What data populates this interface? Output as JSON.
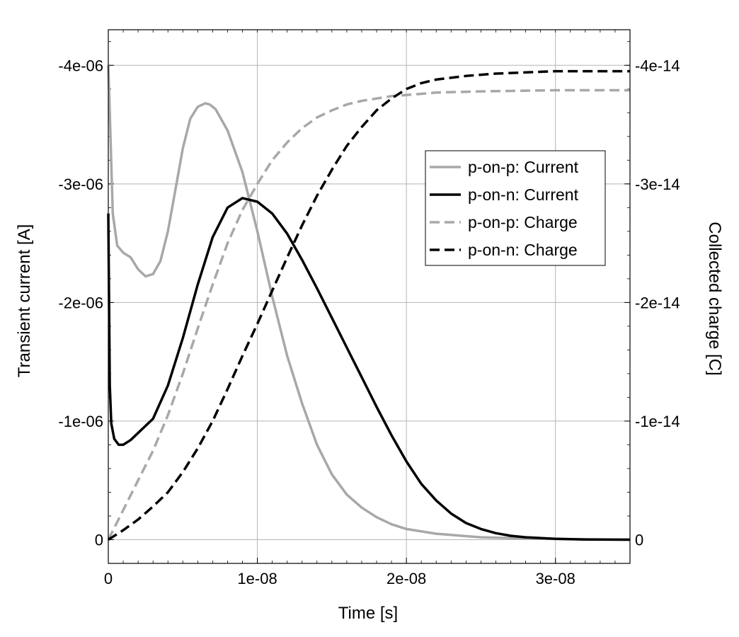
{
  "chart_data": {
    "type": "line",
    "xlabel": "Time [s]",
    "ylabel_left": "Transient current [A]",
    "ylabel_right": "Collected charge [C]",
    "xlim": [
      0,
      3.5e-08
    ],
    "ylim_left": [
      2e-07,
      -4.3e-06
    ],
    "ylim_right": [
      2e-15,
      -4.3e-14
    ],
    "x_ticks": [
      {
        "value": 0,
        "label": "0"
      },
      {
        "value": 1e-08,
        "label": "1e-08"
      },
      {
        "value": 2e-08,
        "label": "2e-08"
      },
      {
        "value": 3e-08,
        "label": "3e-08"
      }
    ],
    "y_ticks_left": [
      {
        "value": 0,
        "label": "0"
      },
      {
        "value": -1e-06,
        "label": "-1e-06"
      },
      {
        "value": -2e-06,
        "label": "-2e-06"
      },
      {
        "value": -3e-06,
        "label": "-3e-06"
      },
      {
        "value": -4e-06,
        "label": "-4e-06"
      }
    ],
    "y_ticks_right": [
      {
        "value": 0,
        "label": "0"
      },
      {
        "value": -1e-14,
        "label": "-1e-14"
      },
      {
        "value": -2e-14,
        "label": "-2e-14"
      },
      {
        "value": -3e-14,
        "label": "-3e-14"
      },
      {
        "value": -4e-14,
        "label": "-4e-14"
      }
    ],
    "grid": true,
    "legend_position": "center-right",
    "series": [
      {
        "name": "p-on-p: Current",
        "axis": "left",
        "color": "#a8a8a8",
        "dash": "solid",
        "x": [
          0,
          1e-10,
          3e-10,
          6e-10,
          1e-09,
          1.5e-09,
          2e-09,
          2.5e-09,
          3e-09,
          3.5e-09,
          4e-09,
          4.5e-09,
          5e-09,
          5.5e-09,
          6e-09,
          6.5e-09,
          6.8e-09,
          7.2e-09,
          8e-09,
          9e-09,
          1e-08,
          1.1e-08,
          1.2e-08,
          1.3e-08,
          1.4e-08,
          1.5e-08,
          1.6e-08,
          1.7e-08,
          1.8e-08,
          1.9e-08,
          2e-08,
          2.2e-08,
          2.5e-08,
          2.8e-08,
          3.1e-08,
          3.5e-08
        ],
        "y": [
          -4e-06,
          -3.6e-06,
          -2.75e-06,
          -2.48e-06,
          -2.42e-06,
          -2.38e-06,
          -2.28e-06,
          -2.22e-06,
          -2.24e-06,
          -2.35e-06,
          -2.6e-06,
          -2.95e-06,
          -3.3e-06,
          -3.55e-06,
          -3.65e-06,
          -3.68e-06,
          -3.67e-06,
          -3.63e-06,
          -3.45e-06,
          -3.1e-06,
          -2.6e-06,
          -2.05e-06,
          -1.55e-06,
          -1.15e-06,
          -8e-07,
          -5.5e-07,
          -3.8e-07,
          -2.7e-07,
          -1.9e-07,
          -1.3e-07,
          -9e-08,
          -5e-08,
          -2e-08,
          -1e-08,
          -4e-09,
          0
        ]
      },
      {
        "name": "p-on-n: Current",
        "axis": "left",
        "color": "#000000",
        "dash": "solid",
        "x": [
          0,
          1e-10,
          2e-10,
          4e-10,
          7e-10,
          1e-09,
          1.5e-09,
          2e-09,
          3e-09,
          4e-09,
          5e-09,
          6e-09,
          7e-09,
          8e-09,
          9e-09,
          1e-08,
          1.1e-08,
          1.2e-08,
          1.3e-08,
          1.4e-08,
          1.5e-08,
          1.6e-08,
          1.7e-08,
          1.8e-08,
          1.9e-08,
          2e-08,
          2.1e-08,
          2.2e-08,
          2.3e-08,
          2.4e-08,
          2.5e-08,
          2.6e-08,
          2.7e-08,
          2.8e-08,
          3e-08,
          3.2e-08,
          3.5e-08
        ],
        "y": [
          -2.75e-06,
          -1.3e-06,
          -9.8e-07,
          -8.5e-07,
          -8e-07,
          -8e-07,
          -8.4e-07,
          -9e-07,
          -1.02e-06,
          -1.3e-06,
          -1.7e-06,
          -2.15e-06,
          -2.55e-06,
          -2.8e-06,
          -2.88e-06,
          -2.85e-06,
          -2.75e-06,
          -2.58e-06,
          -2.36e-06,
          -2.12e-06,
          -1.87e-06,
          -1.62e-06,
          -1.37e-06,
          -1.12e-06,
          -8.8e-07,
          -6.6e-07,
          -4.7e-07,
          -3.3e-07,
          -2.2e-07,
          -1.4e-07,
          -9e-08,
          -5.5e-08,
          -3.3e-08,
          -2e-08,
          -7e-09,
          -2e-09,
          0
        ]
      },
      {
        "name": "p-on-p: Charge",
        "axis": "right",
        "color": "#a8a8a8",
        "dash": "dashed",
        "x": [
          0,
          1e-09,
          2e-09,
          3e-09,
          4e-09,
          5e-09,
          6e-09,
          7e-09,
          8e-09,
          9e-09,
          1e-08,
          1.1e-08,
          1.2e-08,
          1.3e-08,
          1.4e-08,
          1.5e-08,
          1.6e-08,
          1.7e-08,
          1.8e-08,
          1.9e-08,
          2e-08,
          2.2e-08,
          2.5e-08,
          3e-08,
          3.5e-08
        ],
        "y": [
          0,
          -2.5e-15,
          -5e-15,
          -7.5e-15,
          -1.05e-14,
          -1.4e-14,
          -1.78e-14,
          -2.15e-14,
          -2.5e-14,
          -2.78e-14,
          -3e-14,
          -3.2e-14,
          -3.35e-14,
          -3.47e-14,
          -3.56e-14,
          -3.62e-14,
          -3.67e-14,
          -3.7e-14,
          -3.72e-14,
          -3.74e-14,
          -3.75e-14,
          -3.77e-14,
          -3.78e-14,
          -3.79e-14,
          -3.79e-14
        ]
      },
      {
        "name": "p-on-n: Charge",
        "axis": "right",
        "color": "#000000",
        "dash": "dashed",
        "x": [
          0,
          1e-09,
          2e-09,
          3e-09,
          4e-09,
          5e-09,
          6e-09,
          7e-09,
          8e-09,
          9e-09,
          1e-08,
          1.1e-08,
          1.2e-08,
          1.3e-08,
          1.4e-08,
          1.5e-08,
          1.6e-08,
          1.7e-08,
          1.8e-08,
          1.9e-08,
          2e-08,
          2.1e-08,
          2.2e-08,
          2.4e-08,
          2.6e-08,
          2.8e-08,
          3e-08,
          3.5e-08
        ],
        "y": [
          0,
          -8e-16,
          -1.7e-15,
          -2.8e-15,
          -4e-15,
          -5.7e-15,
          -7.7e-15,
          -1e-14,
          -1.27e-14,
          -1.55e-14,
          -1.82e-14,
          -2.1e-14,
          -2.38e-14,
          -2.65e-14,
          -2.9e-14,
          -3.12e-14,
          -3.32e-14,
          -3.48e-14,
          -3.62e-14,
          -3.72e-14,
          -3.8e-14,
          -3.85e-14,
          -3.88e-14,
          -3.91e-14,
          -3.93e-14,
          -3.94e-14,
          -3.95e-14,
          -3.95e-14
        ]
      }
    ]
  }
}
